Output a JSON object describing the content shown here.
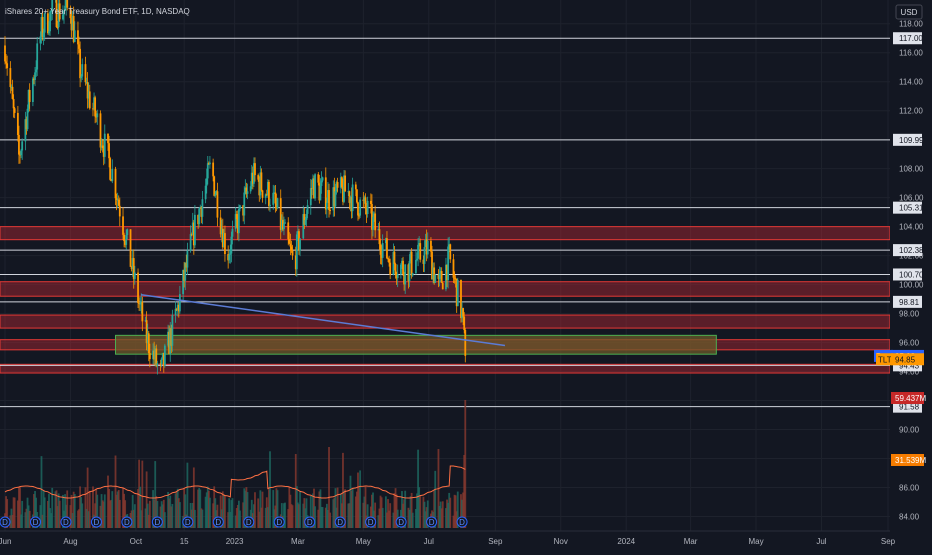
{
  "header": {
    "symbol_title": "iShares 20+ Year Treasury Bond ETF, 1D, NASDAQ",
    "currency_button": "USD"
  },
  "colors": {
    "background": "#131722",
    "candle_up": "#26a69a",
    "candle_down": "#ff9800",
    "level_line": "#d1d4dc",
    "resistance_zone": "#b22833",
    "support_zone": "#4caf50",
    "trendline": "#5b7bd5",
    "volume_ma": "#ff7043",
    "post_tag": "#2962ff",
    "last_tag": "#ff9800",
    "volume_tag": "#c62828"
  },
  "chart_data": {
    "type": "candlestick",
    "title": "iShares 20+ Year Treasury Bond ETF, 1D, NASDAQ",
    "currency": "USD",
    "ylim": [
      83,
      119.5
    ],
    "y_ticks": [
      "84.00",
      "86.00",
      "88.00",
      "90.00",
      "92.00",
      "94.00",
      "96.00",
      "98.00",
      "100.00",
      "102.00",
      "104.00",
      "106.00",
      "108.00",
      "110.00",
      "112.00",
      "114.00",
      "116.00",
      "118.00"
    ],
    "x_ticks": [
      {
        "label": "Jun",
        "date": "2022-06-01"
      },
      {
        "label": "Aug",
        "date": "2022-08-01"
      },
      {
        "label": "Oct",
        "date": "2022-10-01"
      },
      {
        "label": "15",
        "date": "2022-11-15"
      },
      {
        "label": "2023",
        "date": "2023-01-01"
      },
      {
        "label": "Mar",
        "date": "2023-03-01"
      },
      {
        "label": "May",
        "date": "2023-05-01"
      },
      {
        "label": "Jul",
        "date": "2023-07-01"
      },
      {
        "label": "Sep",
        "date": "2023-09-01"
      },
      {
        "label": "Nov",
        "date": "2023-11-01"
      },
      {
        "label": "2024",
        "date": "2024-01-01"
      },
      {
        "label": "Mar",
        "date": "2024-03-01"
      },
      {
        "label": "May",
        "date": "2024-05-01"
      },
      {
        "label": "Jul",
        "date": "2024-07-01"
      },
      {
        "label": "Sep",
        "date": "2024-09-01"
      }
    ],
    "price_path": [
      {
        "date": "2022-06-01",
        "close": 116.5
      },
      {
        "date": "2022-06-14",
        "close": 108.8
      },
      {
        "date": "2022-07-05",
        "close": 117.5
      },
      {
        "date": "2022-07-15",
        "close": 118.8
      },
      {
        "date": "2022-08-01",
        "close": 119.0
      },
      {
        "date": "2022-08-10",
        "close": 114.8
      },
      {
        "date": "2022-08-25",
        "close": 111.5
      },
      {
        "date": "2022-09-10",
        "close": 107.5
      },
      {
        "date": "2022-09-25",
        "close": 102.0
      },
      {
        "date": "2022-10-10",
        "close": 96.5
      },
      {
        "date": "2022-10-24",
        "close": 93.8
      },
      {
        "date": "2022-11-08",
        "close": 98.0
      },
      {
        "date": "2022-11-25",
        "close": 104.0
      },
      {
        "date": "2022-12-10",
        "close": 108.2
      },
      {
        "date": "2022-12-25",
        "close": 102.0
      },
      {
        "date": "2023-01-18",
        "close": 107.5
      },
      {
        "date": "2023-02-05",
        "close": 106.0
      },
      {
        "date": "2023-02-25",
        "close": 101.5
      },
      {
        "date": "2023-03-15",
        "close": 107.0
      },
      {
        "date": "2023-03-30",
        "close": 106.0
      },
      {
        "date": "2023-04-15",
        "close": 106.5
      },
      {
        "date": "2023-05-05",
        "close": 105.0
      },
      {
        "date": "2023-05-25",
        "close": 101.8
      },
      {
        "date": "2023-06-10",
        "close": 101.0
      },
      {
        "date": "2023-06-30",
        "close": 102.5
      },
      {
        "date": "2023-07-10",
        "close": 99.8
      },
      {
        "date": "2023-07-20",
        "close": 101.8
      },
      {
        "date": "2023-08-01",
        "close": 98.0
      },
      {
        "date": "2023-08-04",
        "close": 95.08
      }
    ],
    "horizontal_levels": [
      "117.00",
      "109.99",
      "105.31",
      "102.38",
      "100.70",
      "98.81",
      "94.43",
      "91.58"
    ],
    "resistance_zones": [
      [
        103.1,
        104.0
      ],
      [
        99.2,
        100.2
      ],
      [
        97.0,
        97.9
      ],
      [
        95.5,
        96.2
      ],
      [
        93.9,
        94.5
      ]
    ],
    "support_zone": {
      "top": 96.5,
      "bottom": 95.2,
      "from": "2022-09-12",
      "to": "2024-03-25"
    },
    "trendline": [
      {
        "date": "2022-10-06",
        "price": 99.3
      },
      {
        "date": "2023-09-10",
        "price": 95.8
      }
    ],
    "dividend_markers": 16,
    "volume_label": "59.437M",
    "volume_ma_label": "31.539M",
    "post_market_label": "Post",
    "post_market_price": "95.08",
    "last_label": "TLT",
    "last_price": "94.85"
  }
}
